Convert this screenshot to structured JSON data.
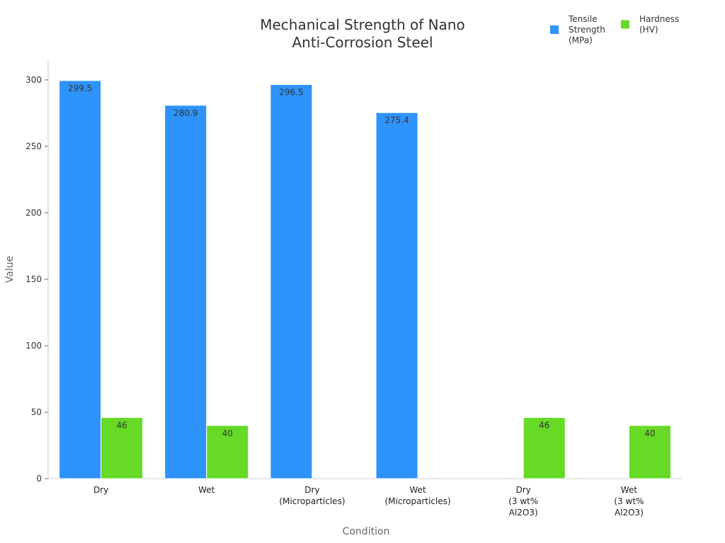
{
  "chart_data": {
    "type": "bar",
    "title": [
      "Mechanical Strength of Nano",
      "Anti-Corrosion Steel"
    ],
    "xlabel": "Condition",
    "ylabel": "Value",
    "ylim": [
      0,
      315
    ],
    "yticks": [
      0,
      50,
      100,
      150,
      200,
      250,
      300
    ],
    "grid": false,
    "legend_placement": "top-right",
    "categories": [
      [
        "Dry"
      ],
      [
        "Wet"
      ],
      [
        "Dry",
        "(Microparticles)"
      ],
      [
        "Wet",
        "(Microparticles)"
      ],
      [
        "Dry",
        "(3 wt%",
        "Al2O3)"
      ],
      [
        "Wet",
        "(3 wt%",
        "Al2O3)"
      ]
    ],
    "series": [
      {
        "name": [
          "Tensile",
          "Strength",
          "(MPa)"
        ],
        "color": "#2E93FA",
        "values": [
          299.5,
          280.9,
          296.5,
          275.4,
          null,
          null
        ]
      },
      {
        "name": [
          "Hardness",
          "(HV)"
        ],
        "color": "#66DA26",
        "values": [
          46,
          40,
          null,
          null,
          46,
          40
        ]
      }
    ]
  }
}
